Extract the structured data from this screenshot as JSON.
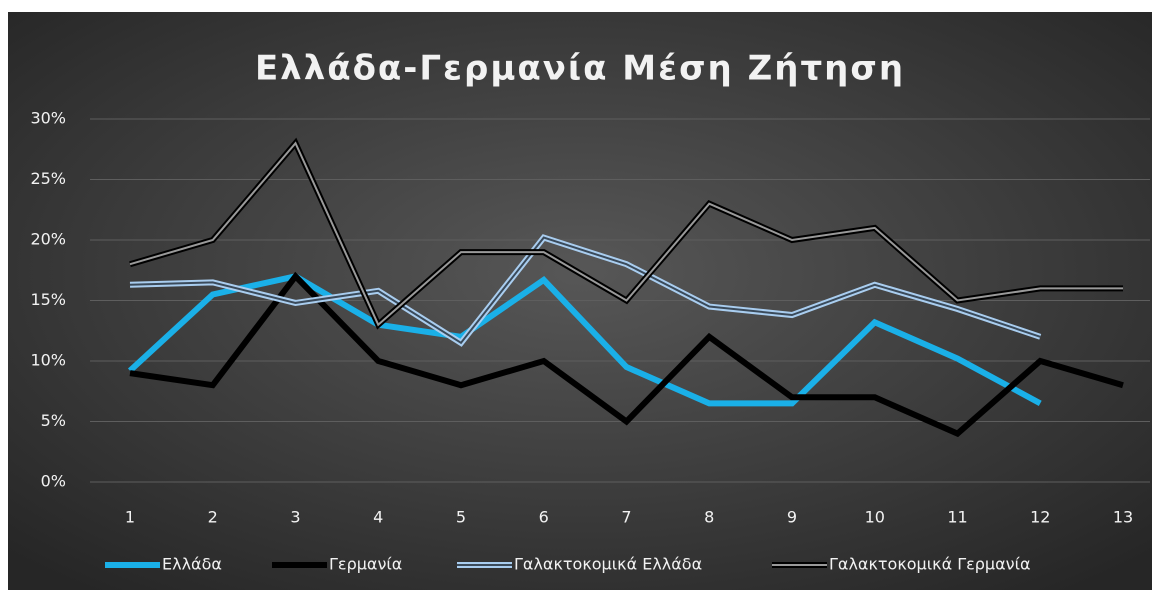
{
  "chart_data": {
    "type": "line",
    "title": "Ελλάδα-Γερμανία Μέση Ζήτηση",
    "categories": [
      "1",
      "2",
      "3",
      "4",
      "5",
      "6",
      "7",
      "8",
      "9",
      "10",
      "11",
      "12",
      "13"
    ],
    "ylim": [
      0,
      30
    ],
    "yticks": [
      {
        "value": 0,
        "label": "0%"
      },
      {
        "value": 5,
        "label": "5%"
      },
      {
        "value": 10,
        "label": "10%"
      },
      {
        "value": 15,
        "label": "15%"
      },
      {
        "value": 20,
        "label": "20%"
      },
      {
        "value": 25,
        "label": "25%"
      },
      {
        "value": 30,
        "label": "30%"
      }
    ],
    "grid": true,
    "legend": "bottom",
    "series": [
      {
        "name": "Ελλάδα",
        "color": "#1ab0e8",
        "style": "solid",
        "values": [
          9.2,
          15.5,
          17,
          13,
          12,
          16.7,
          9.5,
          6.5,
          6.5,
          13.2,
          10.2,
          6.5,
          null
        ]
      },
      {
        "name": "Γερμανία",
        "color": "#000000",
        "style": "solid",
        "values": [
          9,
          8,
          17,
          10,
          8,
          10,
          5,
          12,
          7,
          7,
          4,
          10,
          8
        ]
      },
      {
        "name": "Γαλακτοκομικά Ελλάδα",
        "color": "#a9cdef",
        "style": "double",
        "values": [
          16.3,
          16.5,
          14.8,
          15.8,
          11.5,
          20.2,
          18,
          14.5,
          13.8,
          16.3,
          14.3,
          12,
          null
        ]
      },
      {
        "name": "Γαλακτοκομικά Γερμανία",
        "color": "#000000",
        "style": "double",
        "values": [
          18,
          20,
          28,
          13,
          19,
          19,
          15,
          23,
          20,
          21,
          15,
          16,
          16
        ]
      }
    ]
  }
}
